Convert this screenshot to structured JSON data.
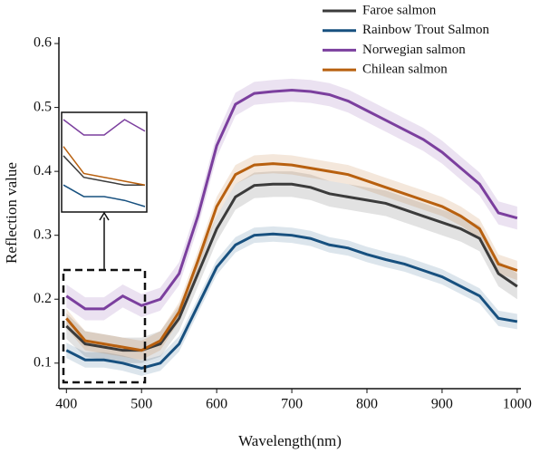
{
  "chart_data": {
    "type": "line",
    "x_label": "Wavelength(nm)",
    "y_label": "Reflection value",
    "x": [
      400,
      425,
      450,
      475,
      500,
      525,
      550,
      575,
      600,
      625,
      650,
      675,
      700,
      725,
      750,
      775,
      800,
      825,
      850,
      875,
      900,
      925,
      950,
      975,
      1000
    ],
    "series": [
      {
        "name": "Faroe salmon",
        "color": "#3b3b3b",
        "error": 0.02,
        "values": [
          0.158,
          0.13,
          0.125,
          0.12,
          0.12,
          0.13,
          0.17,
          0.24,
          0.31,
          0.36,
          0.378,
          0.38,
          0.38,
          0.375,
          0.365,
          0.36,
          0.355,
          0.35,
          0.34,
          0.33,
          0.32,
          0.31,
          0.295,
          0.24,
          0.22
        ]
      },
      {
        "name": "Rainbow Trout Salmon",
        "color": "#17507f",
        "error": 0.012,
        "values": [
          0.12,
          0.105,
          0.105,
          0.1,
          0.092,
          0.1,
          0.13,
          0.19,
          0.25,
          0.285,
          0.3,
          0.302,
          0.3,
          0.295,
          0.285,
          0.28,
          0.27,
          0.262,
          0.255,
          0.245,
          0.235,
          0.22,
          0.205,
          0.17,
          0.165
        ]
      },
      {
        "name": "Norwegian salmon",
        "color": "#7b3f9e",
        "error": 0.018,
        "values": [
          0.205,
          0.185,
          0.185,
          0.205,
          0.19,
          0.2,
          0.24,
          0.33,
          0.44,
          0.505,
          0.522,
          0.525,
          0.527,
          0.525,
          0.52,
          0.51,
          0.495,
          0.48,
          0.465,
          0.45,
          0.43,
          0.405,
          0.38,
          0.335,
          0.327
        ]
      },
      {
        "name": "Chilean salmon",
        "color": "#b8600f",
        "error": 0.015,
        "values": [
          0.17,
          0.135,
          0.13,
          0.125,
          0.12,
          0.135,
          0.18,
          0.26,
          0.345,
          0.395,
          0.41,
          0.412,
          0.41,
          0.405,
          0.4,
          0.395,
          0.385,
          0.375,
          0.365,
          0.355,
          0.345,
          0.33,
          0.31,
          0.255,
          0.245
        ]
      }
    ],
    "xlim": [
      390,
      1005
    ],
    "ylim": [
      0.06,
      0.61
    ],
    "xticks": [
      400,
      500,
      600,
      700,
      800,
      900,
      1000
    ],
    "yticks": [
      0.1,
      0.2,
      0.3,
      0.4,
      0.5,
      0.6
    ]
  }
}
